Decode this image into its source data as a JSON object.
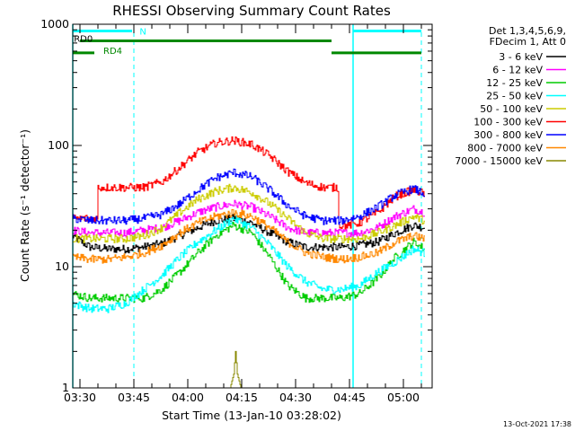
{
  "chart_data": {
    "type": "line",
    "title": "RHESSI Observing Summary Count Rates",
    "xlabel": "Start Time (13-Jan-10 03:28:02)",
    "ylabel": "Count Rate (s⁻¹ detector⁻¹)",
    "yscale": "log",
    "ylim": [
      1,
      1000
    ],
    "xlim_minutes": [
      0,
      100
    ],
    "x_ticks": [
      {
        "label": "03:30",
        "t": 2
      },
      {
        "label": "03:45",
        "t": 17
      },
      {
        "label": "04:00",
        "t": 32
      },
      {
        "label": "04:15",
        "t": 47
      },
      {
        "label": "04:30",
        "t": 62
      },
      {
        "label": "04:45",
        "t": 77
      },
      {
        "label": "05:00",
        "t": 92
      }
    ],
    "y_ticks": [
      {
        "label": "1",
        "v": 1
      },
      {
        "label": "10",
        "v": 10
      },
      {
        "label": "100",
        "v": 100
      },
      {
        "label": "1000",
        "v": 1000
      }
    ],
    "legend_header": [
      "Det 1,3,4,5,6,9,",
      "FDecim 1, Att 0"
    ],
    "legend_position": "right",
    "series": [
      {
        "name": "3 - 6 keV",
        "color": "#000000",
        "x": [
          0,
          5,
          10,
          15,
          20,
          25,
          30,
          35,
          40,
          45,
          50,
          55,
          60,
          65,
          70,
          75,
          80,
          85,
          90,
          95,
          98
        ],
        "y": [
          18,
          14.5,
          14,
          14,
          14.5,
          15.5,
          18,
          21,
          24,
          25,
          23,
          19,
          16,
          14.5,
          14.5,
          14.5,
          15,
          16,
          19,
          22,
          21
        ]
      },
      {
        "name": "6 - 12 keV",
        "color": "#ff00ff",
        "x": [
          0,
          5,
          10,
          15,
          20,
          25,
          30,
          35,
          40,
          45,
          50,
          55,
          60,
          65,
          70,
          75,
          80,
          85,
          90,
          95,
          98
        ],
        "y": [
          20,
          19,
          19,
          19,
          20,
          21,
          24,
          28,
          31,
          33,
          31,
          26,
          21,
          19,
          19,
          19,
          19,
          21,
          26,
          30,
          28
        ]
      },
      {
        "name": "12 - 25 keV",
        "color": "#00cc00",
        "x": [
          0,
          5,
          10,
          15,
          20,
          25,
          30,
          35,
          40,
          45,
          50,
          55,
          60,
          65,
          70,
          75,
          80,
          85,
          90,
          95,
          98
        ],
        "y": [
          6,
          5.5,
          5.5,
          5.5,
          5.5,
          6.5,
          9,
          13,
          18,
          22,
          19,
          12,
          7,
          5.5,
          5.5,
          5.5,
          6,
          8,
          12,
          16,
          14
        ]
      },
      {
        "name": "25 - 50 keV",
        "color": "#00ffff",
        "x": [
          0,
          5,
          10,
          15,
          20,
          25,
          30,
          35,
          40,
          45,
          50,
          55,
          60,
          65,
          70,
          75,
          80,
          85,
          90,
          95,
          98
        ],
        "y": [
          5,
          4.5,
          4.5,
          5,
          6.5,
          8.5,
          12,
          16,
          20,
          25,
          21,
          15,
          10,
          7.5,
          6.5,
          6.5,
          7,
          9,
          11,
          14,
          13
        ]
      },
      {
        "name": "50 - 100 keV",
        "color": "#cccc00",
        "x": [
          0,
          5,
          10,
          15,
          20,
          25,
          30,
          35,
          40,
          45,
          50,
          55,
          60,
          65,
          70,
          75,
          80,
          85,
          90,
          95,
          98
        ],
        "y": [
          17,
          17,
          17,
          17,
          18,
          21,
          28,
          36,
          42,
          45,
          41,
          33,
          25,
          19,
          17,
          17,
          17,
          19,
          22,
          26,
          24
        ]
      },
      {
        "name": "100 - 300 keV",
        "color": "#ff0000",
        "x": [
          0,
          5,
          7,
          7.1,
          10,
          15,
          20,
          25,
          30,
          35,
          40,
          45,
          50,
          55,
          60,
          65,
          70,
          74,
          74.1,
          77,
          80,
          85,
          90,
          95,
          98
        ],
        "y": [
          25,
          25,
          25,
          45,
          45,
          45,
          45,
          50,
          66,
          88,
          105,
          110,
          102,
          82,
          61,
          49,
          45,
          45,
          22,
          22,
          23,
          28,
          38,
          43,
          40
        ]
      },
      {
        "name": "300 - 800 keV",
        "color": "#0000ff",
        "x": [
          0,
          5,
          10,
          15,
          20,
          25,
          30,
          35,
          40,
          45,
          50,
          55,
          60,
          65,
          70,
          75,
          80,
          85,
          90,
          95,
          98
        ],
        "y": [
          25,
          24,
          24,
          24,
          25,
          27,
          33,
          43,
          54,
          60,
          55,
          43,
          32,
          26,
          24,
          24,
          26,
          31,
          39,
          44,
          40
        ]
      },
      {
        "name": "800 - 7000 keV",
        "color": "#ff8800",
        "x": [
          0,
          5,
          10,
          15,
          20,
          25,
          30,
          35,
          40,
          45,
          50,
          55,
          60,
          65,
          70,
          75,
          80,
          85,
          90,
          95,
          98
        ],
        "y": [
          12,
          11.5,
          11.5,
          12,
          13,
          15,
          19,
          23,
          26,
          28,
          26,
          21,
          16,
          13,
          12,
          11.5,
          12,
          13,
          16,
          18,
          17
        ]
      },
      {
        "name": "7000 - 15000 keV",
        "color": "#888800",
        "x": [
          40,
          44,
          45,
          45.5,
          46,
          47,
          50
        ],
        "y": [
          1,
          1,
          1.3,
          2,
          1.3,
          1,
          1
        ]
      }
    ],
    "state_bars": [
      {
        "label": "RD0",
        "color": "#00ffff",
        "segments": [
          [
            0,
            16.5
          ],
          [
            78,
            97
          ]
        ],
        "level": 880
      },
      {
        "label": "N",
        "color": "#00ffff",
        "segments": [],
        "level": 880
      },
      {
        "label": "",
        "color": "#008800",
        "segments": [
          [
            2,
            72
          ]
        ],
        "level": 730
      },
      {
        "label": "RD4",
        "color": "#008800",
        "segments": [
          [
            0,
            6
          ],
          [
            72,
            97
          ]
        ],
        "level": 580
      }
    ],
    "vertical_markers": {
      "solid": {
        "color": "#00ffff",
        "t": [
          0,
          78
        ]
      },
      "dashed": {
        "color": "#00ffff",
        "t": [
          17,
          97
        ]
      }
    }
  },
  "footer_timestamp": "13-Oct-2021 17:38"
}
